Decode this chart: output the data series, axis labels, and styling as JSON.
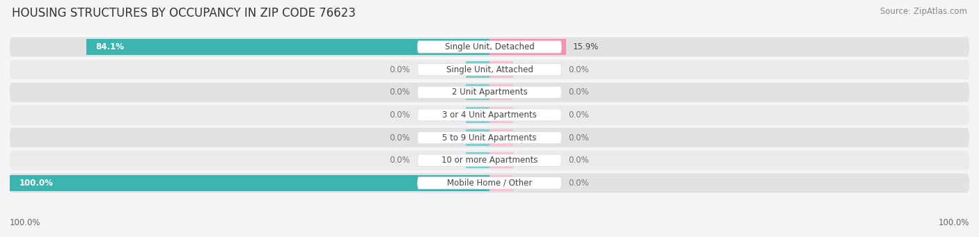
{
  "title": "HOUSING STRUCTURES BY OCCUPANCY IN ZIP CODE 76623",
  "source": "Source: ZipAtlas.com",
  "categories": [
    "Single Unit, Detached",
    "Single Unit, Attached",
    "2 Unit Apartments",
    "3 or 4 Unit Apartments",
    "5 to 9 Unit Apartments",
    "10 or more Apartments",
    "Mobile Home / Other"
  ],
  "owner_pct": [
    84.1,
    0.0,
    0.0,
    0.0,
    0.0,
    0.0,
    100.0
  ],
  "renter_pct": [
    15.9,
    0.0,
    0.0,
    0.0,
    0.0,
    0.0,
    0.0
  ],
  "owner_color": "#3ab5b0",
  "renter_color": "#f590b2",
  "owner_stub_color": "#7bcfcc",
  "renter_stub_color": "#f8bfd5",
  "row_bg_colors": [
    "#e2e2e5",
    "#ebebee",
    "#e2e2e5",
    "#ebebee",
    "#e2e2e5",
    "#ebebee",
    "#e2e2e5"
  ],
  "bar_height": 0.72,
  "title_fontsize": 12,
  "source_fontsize": 8.5,
  "label_fontsize": 8.5,
  "pct_fontsize": 8.5,
  "legend_fontsize": 9,
  "background_color": "#f5f5f7",
  "axis_label_left": "100.0%",
  "axis_label_right": "100.0%"
}
